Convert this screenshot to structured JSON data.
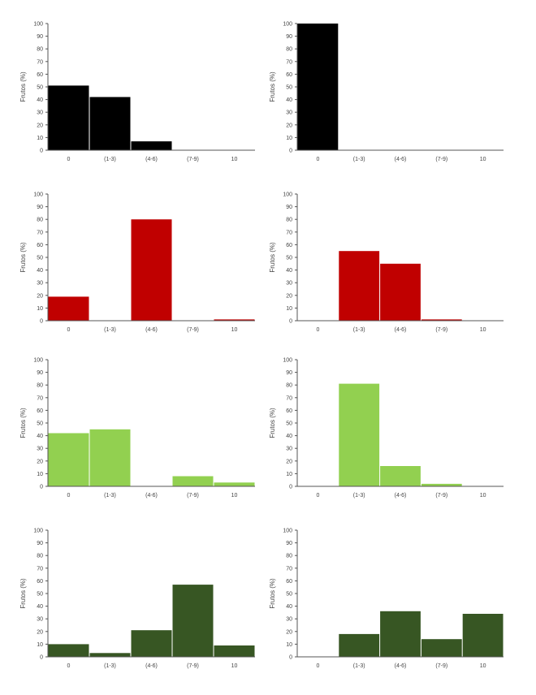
{
  "chart_data": [
    {
      "type": "bar",
      "color": "#000000",
      "categories": [
        "0",
        "(1-3)",
        "(4-6)",
        "(7-9)",
        "10"
      ],
      "values": [
        51,
        42,
        7,
        0,
        0
      ],
      "ylabel": "Frutos (%)",
      "ylim": [
        0,
        100
      ],
      "yticks": [
        "0",
        "10",
        "20",
        "30",
        "40",
        "50",
        "60",
        "70",
        "80",
        "90",
        "100"
      ]
    },
    {
      "type": "bar",
      "color": "#000000",
      "categories": [
        "0",
        "(1-3)",
        "(4-6)",
        "(7-9)",
        "10"
      ],
      "values": [
        100,
        0,
        0,
        0,
        0
      ],
      "ylabel": "Frutos (%)",
      "ylim": [
        0,
        100
      ],
      "yticks": [
        "0",
        "10",
        "20",
        "30",
        "40",
        "50",
        "60",
        "70",
        "80",
        "90",
        "100"
      ]
    },
    {
      "type": "bar",
      "color": "#c00000",
      "categories": [
        "0",
        "(1-3)",
        "(4-6)",
        "(7-9)",
        "10"
      ],
      "values": [
        19,
        0,
        80,
        0,
        1
      ],
      "ylabel": "Frutos (%)",
      "ylim": [
        0,
        100
      ],
      "yticks": [
        "0",
        "10",
        "20",
        "30",
        "40",
        "50",
        "60",
        "70",
        "80",
        "90",
        "100"
      ]
    },
    {
      "type": "bar",
      "color": "#c00000",
      "categories": [
        "0",
        "(1-3)",
        "(4-6)",
        "(7-9)",
        "10"
      ],
      "values": [
        0,
        55,
        45,
        1,
        0
      ],
      "ylabel": "Frutos (%)",
      "ylim": [
        0,
        100
      ],
      "yticks": [
        "0",
        "10",
        "20",
        "30",
        "40",
        "50",
        "60",
        "70",
        "80",
        "90",
        "100"
      ]
    },
    {
      "type": "bar",
      "color": "#92d050",
      "categories": [
        "0",
        "(1-3)",
        "(4-6)",
        "(7-9)",
        "10"
      ],
      "values": [
        42,
        45,
        0,
        8,
        3
      ],
      "ylabel": "Frutos (%)",
      "ylim": [
        0,
        100
      ],
      "yticks": [
        "0",
        "10",
        "20",
        "30",
        "40",
        "50",
        "60",
        "70",
        "80",
        "90",
        "100"
      ]
    },
    {
      "type": "bar",
      "color": "#92d050",
      "categories": [
        "0",
        "(1-3)",
        "(4-6)",
        "(7-9)",
        "10"
      ],
      "values": [
        0,
        81,
        16,
        2,
        0
      ],
      "ylabel": "Frutos (%)",
      "ylim": [
        0,
        100
      ],
      "yticks": [
        "0",
        "10",
        "20",
        "30",
        "40",
        "50",
        "60",
        "70",
        "80",
        "90",
        "100"
      ]
    },
    {
      "type": "bar",
      "color": "#375623",
      "categories": [
        "0",
        "(1-3)",
        "(4-6)",
        "(7-9)",
        "10"
      ],
      "values": [
        10,
        3,
        21,
        57,
        9
      ],
      "ylabel": "Frutos (%)",
      "ylim": [
        0,
        100
      ],
      "yticks": [
        "0",
        "10",
        "20",
        "30",
        "40",
        "50",
        "60",
        "70",
        "80",
        "90",
        "100"
      ]
    },
    {
      "type": "bar",
      "color": "#375623",
      "categories": [
        "0",
        "(1-3)",
        "(4-6)",
        "(7-9)",
        "10"
      ],
      "values": [
        0,
        18,
        36,
        14,
        34
      ],
      "ylabel": "Frutos (%)",
      "ylim": [
        0,
        100
      ],
      "yticks": [
        "0",
        "10",
        "20",
        "30",
        "40",
        "50",
        "60",
        "70",
        "80",
        "90",
        "100"
      ]
    }
  ]
}
